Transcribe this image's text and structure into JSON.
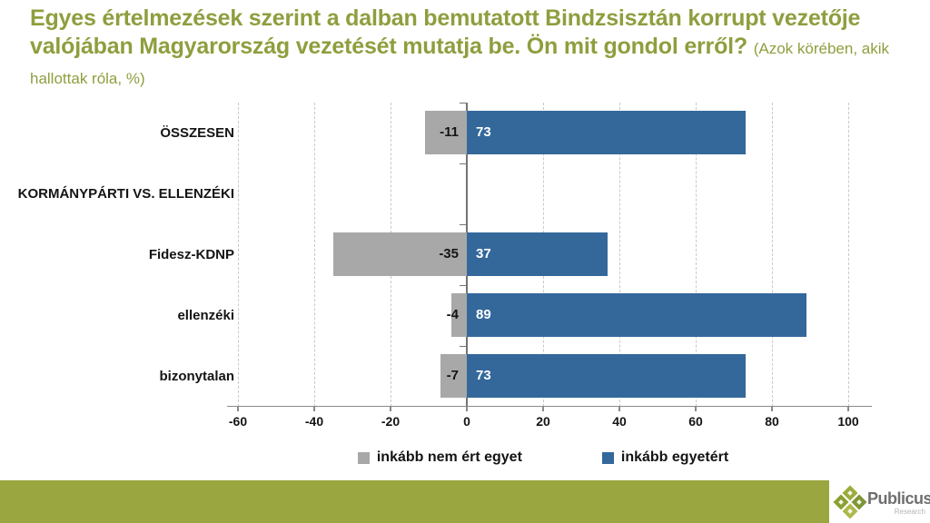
{
  "title": {
    "text": "Egyes értelmezések szerint a dalban bemutatott Bindzsisztán korrupt vezetője valójában Magyarország vezetését mutatja be. Ön mit gondol erről?",
    "subtitle": "(Azok körében, akik hallottak róla, %)",
    "color": "#8f9e3e"
  },
  "chart_data": {
    "type": "bar",
    "orientation": "horizontal-diverging",
    "categories": [
      "ÖSSZESEN",
      "KORMÁNYPÁRTI VS. ELLENZÉKI",
      "Fidesz-KDNP",
      "ellenzéki",
      "bizonytalan"
    ],
    "series": [
      {
        "name": "inkább nem ért egyet",
        "color": "#a8a8a8",
        "values": [
          -11,
          null,
          -35,
          -4,
          -7
        ]
      },
      {
        "name": "inkább egyetért",
        "color": "#34689b",
        "values": [
          73,
          null,
          37,
          89,
          73
        ]
      }
    ],
    "xlim": [
      -60,
      100
    ],
    "xticks": [
      -60,
      -40,
      -20,
      0,
      20,
      40,
      60,
      80,
      100
    ],
    "grid": "dashed-vertical-every-20",
    "legend_position": "bottom",
    "value_labels": true,
    "note": "KORMÁNYPÁRTI VS. ELLENZÉKI is a section header row with no bars"
  },
  "footer": {
    "brand": "Publicus",
    "sub": "Research",
    "band_color": "#9aa63f",
    "logo_greens": [
      "#9cab3c",
      "#8aa032",
      "#7e9634",
      "#adb94b"
    ]
  }
}
